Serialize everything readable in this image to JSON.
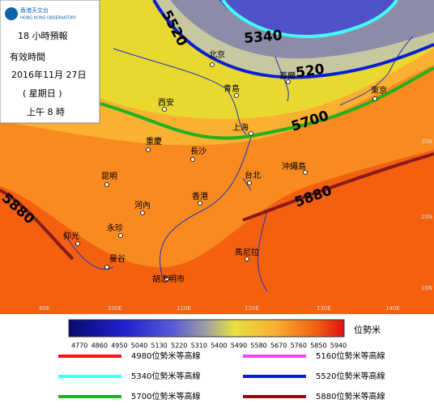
{
  "info": {
    "logo": [
      "香港天文台",
      "HONG KONG OBSERVATORY"
    ],
    "forecast": "18 小時預報",
    "valid": "有效時間",
    "date": "2016年11月 27日",
    "weekday": "( 星期日 )",
    "time": "上午 8 時"
  },
  "cities": [
    "北京",
    "首爾",
    "青島",
    "東京",
    "西安",
    "上海",
    "重慶",
    "長沙",
    "沖繩島",
    "昆明",
    "台北",
    "香港",
    "河內",
    "永珍",
    "仰光",
    "馬尼拉",
    "曼谷",
    "胡志明市"
  ],
  "contour_labels": [
    "5520",
    "5340",
    "520",
    "5700",
    "5880",
    "5880"
  ],
  "grid_labels": [
    "30N",
    "20N",
    "10N",
    "90E",
    "100E",
    "110E",
    "120E",
    "130E",
    "140E"
  ],
  "colorbar": {
    "ticks": [
      4770,
      4860,
      4950,
      5040,
      5130,
      5220,
      5310,
      5400,
      5490,
      5580,
      5670,
      5760,
      5850,
      5940
    ],
    "unit": "位勢米"
  },
  "legend": [
    {
      "label": "4980位勢米等高線",
      "color": "#ff1010"
    },
    {
      "label": "5160位勢米等高線",
      "color": "#ff40ff"
    },
    {
      "label": "5340位勢米等高線",
      "color": "#40ffff"
    },
    {
      "label": "5520位勢米等高線",
      "color": "#0a1fd0"
    },
    {
      "label": "5700位勢米等高線",
      "color": "#20b020"
    },
    {
      "label": "5880位勢米等高線",
      "color": "#8b1010"
    }
  ]
}
